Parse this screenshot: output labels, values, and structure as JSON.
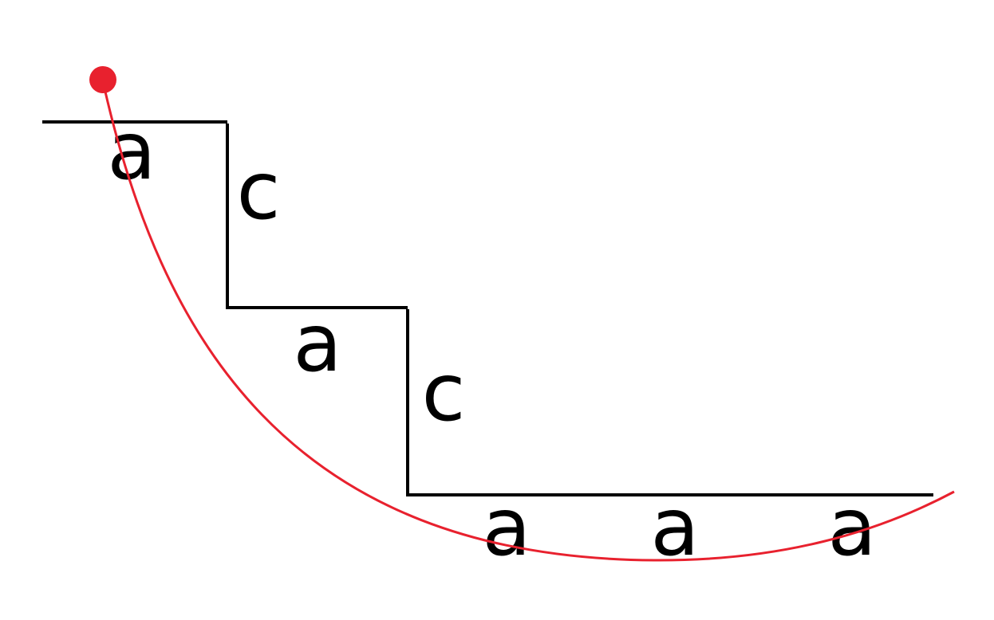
{
  "labels": {
    "tread_1": "a",
    "riser_1": "c",
    "tread_2": "a",
    "riser_2": "c",
    "tread_3": "a",
    "tread_4": "a",
    "tread_5": "a"
  },
  "colors": {
    "staircase": "#000000",
    "curve": "#e8212e",
    "start_point": "#e8212e",
    "background": "#ffffff"
  }
}
